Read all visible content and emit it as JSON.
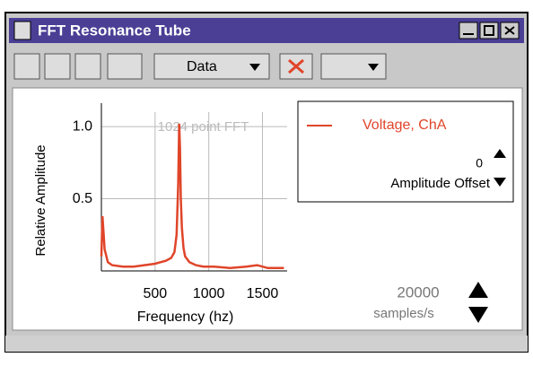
{
  "window": {
    "title": "FFT Resonance Tube",
    "toolbar_data": "Data"
  },
  "chart_data": {
    "type": "line",
    "annotation": "1024 point FFT",
    "x_label": "Frequency (hz)",
    "y_label": "Relative Amplitude",
    "x": [
      0,
      10,
      30,
      60,
      100,
      200,
      300,
      400,
      500,
      550,
      600,
      650,
      680,
      700,
      715,
      725,
      732,
      740,
      750,
      765,
      780,
      820,
      880,
      950,
      1050,
      1200,
      1350,
      1450,
      1550,
      1700
    ],
    "series": [
      {
        "name": "Voltage, ChA",
        "color": "#e0452a",
        "values": [
          0.1,
          0.38,
          0.15,
          0.06,
          0.04,
          0.03,
          0.03,
          0.04,
          0.05,
          0.06,
          0.07,
          0.09,
          0.13,
          0.25,
          0.6,
          1.02,
          0.85,
          0.5,
          0.3,
          0.16,
          0.1,
          0.06,
          0.04,
          0.03,
          0.03,
          0.02,
          0.03,
          0.04,
          0.02,
          0.02
        ]
      }
    ],
    "xlim": [
      0,
      1730
    ],
    "ylim": [
      0,
      1.1
    ],
    "xticks": [
      500,
      1000,
      1500
    ],
    "yticks": [
      {
        "value": 1,
        "label": "1.0"
      },
      0.5
    ],
    "grid": true
  },
  "controls": {
    "offset_value": "0",
    "offset_label": "Amplitude Offset",
    "rate_value": "20000",
    "rate_label": "samples/s"
  }
}
